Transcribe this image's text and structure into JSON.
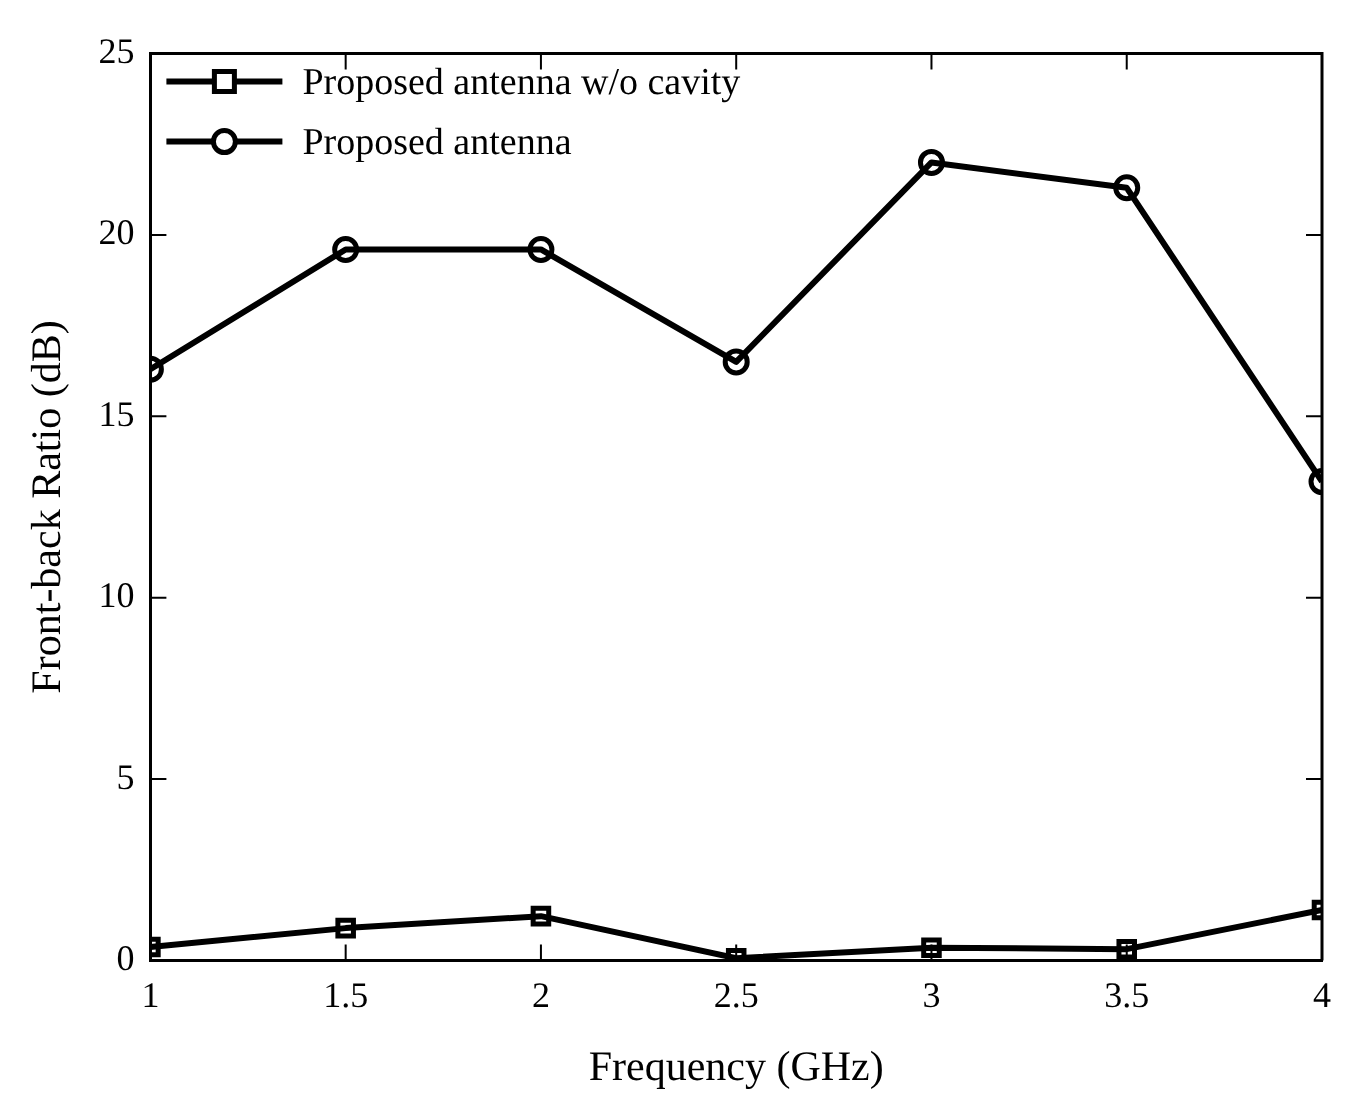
{
  "chart_data": {
    "type": "line",
    "xlabel": "Frequency (GHz)",
    "ylabel": "Front-back Ratio (dB)",
    "x": [
      1,
      1.5,
      2,
      2.5,
      3,
      3.5,
      4
    ],
    "series": [
      {
        "name": "Proposed antenna w/o cavity",
        "color": "#000000",
        "marker": "square",
        "values": [
          0.37,
          0.89,
          1.22,
          0.06,
          0.35,
          0.31,
          1.39
        ]
      },
      {
        "name": "Proposed antenna",
        "color": "#000000",
        "marker": "circle",
        "values": [
          16.3,
          19.6,
          19.6,
          16.5,
          22.0,
          21.3,
          13.2
        ]
      }
    ],
    "xlim": [
      1,
      4
    ],
    "xticks": [
      1,
      1.5,
      2,
      2.5,
      3,
      3.5,
      4
    ],
    "ylim": [
      0,
      25
    ],
    "yticks": [
      0,
      5,
      10,
      15,
      20,
      25
    ],
    "grid": false,
    "legend": "top left",
    "line_style": "solid"
  }
}
